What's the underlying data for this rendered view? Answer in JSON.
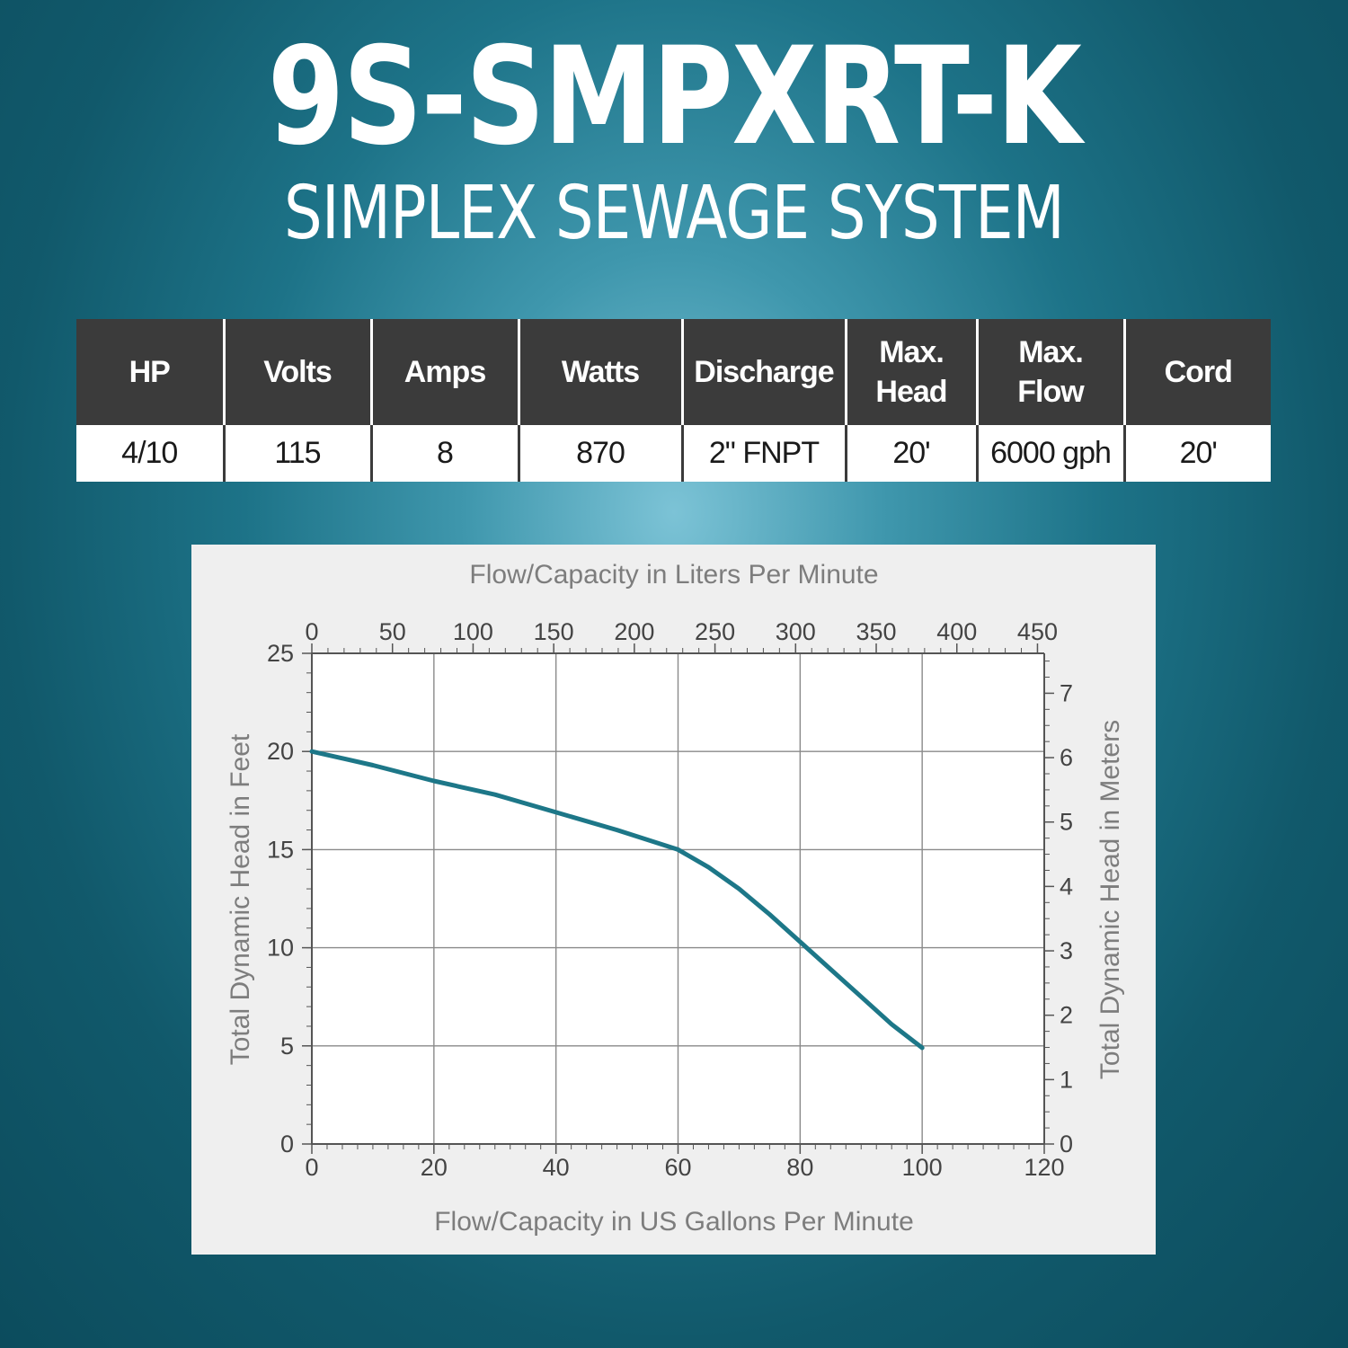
{
  "header": {
    "model": "9S-SMPXRT-K",
    "product_name": "SIMPLEX SEWAGE SYSTEM"
  },
  "specs": {
    "headers": [
      "HP",
      "Volts",
      "Amps",
      "Watts",
      "Discharge",
      "Max.\nHead",
      "Max. Flow",
      "Cord"
    ],
    "values": [
      "4/10",
      "115",
      "8",
      "870",
      "2\" FNPT",
      "20'",
      "6000 gph",
      "20'"
    ]
  },
  "colors": {
    "curve": "#1d7788",
    "table_header_bg": "#3b3b3b",
    "chart_bg": "#efefef"
  },
  "chart_data": {
    "type": "line",
    "xlabel": "Flow/Capacity in US Gallons Per Minute",
    "x2label": "Flow/Capacity in Liters Per Minute",
    "ylabel": "Total Dynamic Head in Feet",
    "y2label": "Total Dynamic Head in Meters",
    "xlim": [
      0,
      120
    ],
    "x_ticks": [
      0,
      20,
      40,
      60,
      80,
      100,
      120
    ],
    "x2lim": [
      0,
      454.2
    ],
    "x2_ticks": [
      0,
      50,
      100,
      150,
      200,
      250,
      300,
      350,
      400,
      450
    ],
    "ylim": [
      0,
      25
    ],
    "y_ticks": [
      0,
      5,
      10,
      15,
      20,
      25
    ],
    "y2lim": [
      0,
      7.62
    ],
    "y2_ticks": [
      0,
      1,
      2,
      3,
      4,
      5,
      6,
      7
    ],
    "grid": true,
    "series": [
      {
        "x": [
          0,
          10,
          20,
          30,
          40,
          50,
          60,
          65,
          70,
          75,
          80,
          85,
          90,
          95,
          100
        ],
        "y": [
          20,
          19.3,
          18.5,
          17.8,
          16.9,
          16.0,
          15.0,
          14.1,
          13.0,
          11.7,
          10.3,
          8.9,
          7.5,
          6.1,
          4.9
        ]
      }
    ]
  }
}
